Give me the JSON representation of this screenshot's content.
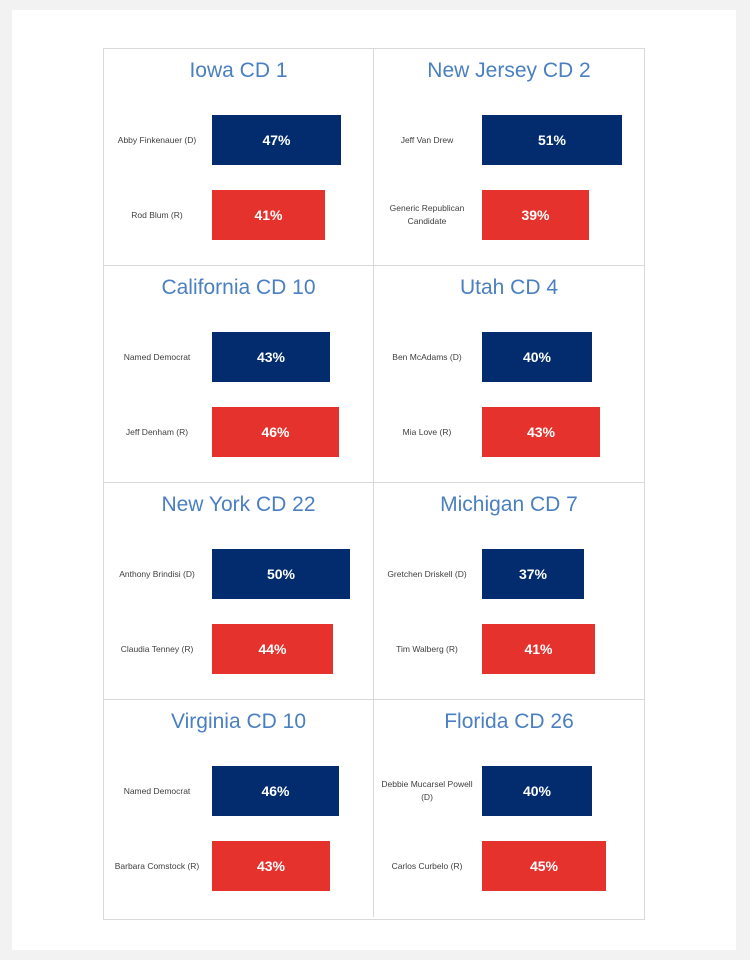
{
  "colors": {
    "democrat": "#032c6e",
    "republican": "#e5322d",
    "title": "#4a7fc1"
  },
  "chart_data": [
    {
      "type": "bar",
      "orientation": "horizontal",
      "title": "Iowa CD 1",
      "categories": [
        "Abby Finkenauer (D)",
        "Rod Blum (R)"
      ],
      "values": [
        47,
        41
      ],
      "labels": [
        "47%",
        "41%"
      ],
      "party": [
        "D",
        "R"
      ]
    },
    {
      "type": "bar",
      "orientation": "horizontal",
      "title": "New Jersey CD 2",
      "categories": [
        "Jeff Van Drew",
        "Generic Republican Candidate"
      ],
      "values": [
        51,
        39
      ],
      "labels": [
        "51%",
        "39%"
      ],
      "party": [
        "D",
        "R"
      ]
    },
    {
      "type": "bar",
      "orientation": "horizontal",
      "title": "California CD 10",
      "categories": [
        "Named Democrat",
        "Jeff Denham (R)"
      ],
      "values": [
        43,
        46
      ],
      "labels": [
        "43%",
        "46%"
      ],
      "party": [
        "D",
        "R"
      ]
    },
    {
      "type": "bar",
      "orientation": "horizontal",
      "title": "Utah CD 4",
      "categories": [
        "Ben McAdams (D)",
        "Mia Love (R)"
      ],
      "values": [
        40,
        43
      ],
      "labels": [
        "40%",
        "43%"
      ],
      "party": [
        "D",
        "R"
      ]
    },
    {
      "type": "bar",
      "orientation": "horizontal",
      "title": "New York CD 22",
      "categories": [
        "Anthony Brindisi (D)",
        "Claudia Tenney (R)"
      ],
      "values": [
        50,
        44
      ],
      "labels": [
        "50%",
        "44%"
      ],
      "party": [
        "D",
        "R"
      ]
    },
    {
      "type": "bar",
      "orientation": "horizontal",
      "title": "Michigan CD 7",
      "categories": [
        "Gretchen Driskell (D)",
        "Tim Walberg (R)"
      ],
      "values": [
        37,
        41
      ],
      "labels": [
        "37%",
        "41%"
      ],
      "party": [
        "D",
        "R"
      ]
    },
    {
      "type": "bar",
      "orientation": "horizontal",
      "title": "Virginia CD 10",
      "categories": [
        "Named Democrat",
        "Barbara Comstock (R)"
      ],
      "values": [
        46,
        43
      ],
      "labels": [
        "46%",
        "43%"
      ],
      "party": [
        "D",
        "R"
      ]
    },
    {
      "type": "bar",
      "orientation": "horizontal",
      "title": "Florida CD 26",
      "categories": [
        "Debbie Mucarsel Powell (D)",
        "Carlos Curbelo (R)"
      ],
      "values": [
        40,
        45
      ],
      "labels": [
        "40%",
        "45%"
      ],
      "party": [
        "D",
        "R"
      ]
    }
  ]
}
